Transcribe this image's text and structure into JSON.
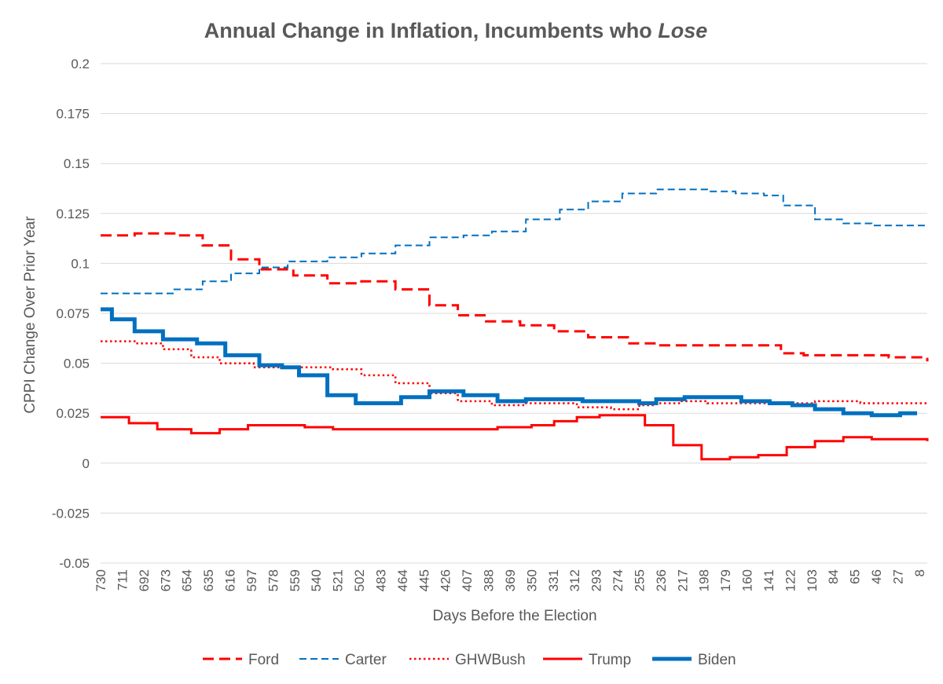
{
  "chart_data": {
    "type": "line",
    "title": "Annual Change in Inflation, Incumbents who ",
    "title_emphasis": "Lose",
    "xlabel": "Days Before the Election",
    "ylabel": "CPPI Change Over Prior Year",
    "ylim": [
      -0.05,
      0.2
    ],
    "xlim": [
      730,
      1
    ],
    "x_reversed": true,
    "grid": true,
    "legend_position": "bottom",
    "y_ticks": [
      "-0.05",
      "-0.025",
      "0",
      "0.025",
      "0.05",
      "0.075",
      "0.1",
      "0.125",
      "0.15",
      "0.175",
      "0.2"
    ],
    "x_ticks": [
      "730",
      "711",
      "692",
      "673",
      "654",
      "635",
      "616",
      "597",
      "578",
      "559",
      "540",
      "521",
      "502",
      "483",
      "464",
      "445",
      "426",
      "407",
      "388",
      "369",
      "350",
      "331",
      "312",
      "293",
      "274",
      "255",
      "236",
      "217",
      "198",
      "179",
      "160",
      "141",
      "122",
      "103",
      "84",
      "65",
      "46",
      "27",
      "8"
    ],
    "series": [
      {
        "name": "Ford",
        "color": "#FF0000",
        "style": "dash",
        "width": 3,
        "points": [
          [
            730,
            0.114
          ],
          [
            700,
            0.115
          ],
          [
            665,
            0.114
          ],
          [
            640,
            0.109
          ],
          [
            615,
            0.102
          ],
          [
            590,
            0.097
          ],
          [
            570,
            0.097
          ],
          [
            560,
            0.094
          ],
          [
            530,
            0.09
          ],
          [
            500,
            0.091
          ],
          [
            470,
            0.087
          ],
          [
            440,
            0.079
          ],
          [
            415,
            0.074
          ],
          [
            390,
            0.071
          ],
          [
            360,
            0.069
          ],
          [
            330,
            0.066
          ],
          [
            300,
            0.063
          ],
          [
            265,
            0.06
          ],
          [
            240,
            0.059
          ],
          [
            220,
            0.059
          ],
          [
            180,
            0.059
          ],
          [
            150,
            0.059
          ],
          [
            130,
            0.055
          ],
          [
            110,
            0.054
          ],
          [
            90,
            0.054
          ],
          [
            60,
            0.054
          ],
          [
            35,
            0.053
          ],
          [
            10,
            0.053
          ],
          [
            1,
            0.051
          ]
        ]
      },
      {
        "name": "Carter",
        "color": "#0070C0",
        "style": "dash",
        "width": 2,
        "points": [
          [
            730,
            0.085
          ],
          [
            700,
            0.085
          ],
          [
            665,
            0.087
          ],
          [
            640,
            0.091
          ],
          [
            615,
            0.095
          ],
          [
            590,
            0.098
          ],
          [
            565,
            0.101
          ],
          [
            540,
            0.101
          ],
          [
            530,
            0.103
          ],
          [
            500,
            0.105
          ],
          [
            470,
            0.109
          ],
          [
            440,
            0.113
          ],
          [
            410,
            0.114
          ],
          [
            385,
            0.116
          ],
          [
            355,
            0.122
          ],
          [
            325,
            0.127
          ],
          [
            300,
            0.131
          ],
          [
            270,
            0.135
          ],
          [
            240,
            0.137
          ],
          [
            215,
            0.137
          ],
          [
            195,
            0.136
          ],
          [
            170,
            0.135
          ],
          [
            145,
            0.134
          ],
          [
            128,
            0.129
          ],
          [
            100,
            0.122
          ],
          [
            75,
            0.12
          ],
          [
            50,
            0.119
          ],
          [
            1,
            0.119
          ]
        ]
      },
      {
        "name": "GHWBush",
        "color": "#FF0000",
        "style": "dot",
        "width": 2.5,
        "points": [
          [
            730,
            0.061
          ],
          [
            700,
            0.06
          ],
          [
            675,
            0.057
          ],
          [
            650,
            0.053
          ],
          [
            625,
            0.05
          ],
          [
            595,
            0.048
          ],
          [
            570,
            0.048
          ],
          [
            545,
            0.048
          ],
          [
            525,
            0.047
          ],
          [
            500,
            0.044
          ],
          [
            470,
            0.04
          ],
          [
            440,
            0.035
          ],
          [
            415,
            0.031
          ],
          [
            385,
            0.029
          ],
          [
            355,
            0.03
          ],
          [
            330,
            0.03
          ],
          [
            310,
            0.028
          ],
          [
            280,
            0.027
          ],
          [
            255,
            0.029
          ],
          [
            240,
            0.03
          ],
          [
            220,
            0.031
          ],
          [
            195,
            0.03
          ],
          [
            170,
            0.03
          ],
          [
            145,
            0.03
          ],
          [
            125,
            0.03
          ],
          [
            100,
            0.031
          ],
          [
            80,
            0.031
          ],
          [
            60,
            0.03
          ],
          [
            1,
            0.03
          ]
        ]
      },
      {
        "name": "Trump",
        "color": "#FF0000",
        "style": "solid",
        "width": 3,
        "points": [
          [
            730,
            0.023
          ],
          [
            705,
            0.02
          ],
          [
            680,
            0.017
          ],
          [
            650,
            0.015
          ],
          [
            625,
            0.017
          ],
          [
            600,
            0.019
          ],
          [
            575,
            0.019
          ],
          [
            550,
            0.018
          ],
          [
            525,
            0.017
          ],
          [
            500,
            0.017
          ],
          [
            475,
            0.017
          ],
          [
            450,
            0.017
          ],
          [
            425,
            0.017
          ],
          [
            405,
            0.017
          ],
          [
            380,
            0.018
          ],
          [
            350,
            0.019
          ],
          [
            330,
            0.021
          ],
          [
            310,
            0.023
          ],
          [
            290,
            0.024
          ],
          [
            270,
            0.024
          ],
          [
            250,
            0.019
          ],
          [
            225,
            0.009
          ],
          [
            200,
            0.002
          ],
          [
            175,
            0.003
          ],
          [
            150,
            0.004
          ],
          [
            125,
            0.008
          ],
          [
            100,
            0.011
          ],
          [
            75,
            0.013
          ],
          [
            50,
            0.012
          ],
          [
            25,
            0.012
          ],
          [
            1,
            0.011
          ]
        ]
      },
      {
        "name": "Biden",
        "color": "#0070C0",
        "style": "solid",
        "width": 5,
        "points": [
          [
            730,
            0.077
          ],
          [
            720,
            0.072
          ],
          [
            700,
            0.066
          ],
          [
            675,
            0.062
          ],
          [
            645,
            0.06
          ],
          [
            620,
            0.054
          ],
          [
            590,
            0.049
          ],
          [
            570,
            0.048
          ],
          [
            555,
            0.044
          ],
          [
            530,
            0.034
          ],
          [
            505,
            0.03
          ],
          [
            485,
            0.03
          ],
          [
            465,
            0.033
          ],
          [
            440,
            0.036
          ],
          [
            410,
            0.034
          ],
          [
            380,
            0.031
          ],
          [
            355,
            0.032
          ],
          [
            330,
            0.032
          ],
          [
            305,
            0.031
          ],
          [
            280,
            0.031
          ],
          [
            255,
            0.03
          ],
          [
            240,
            0.032
          ],
          [
            215,
            0.033
          ],
          [
            190,
            0.033
          ],
          [
            165,
            0.031
          ],
          [
            140,
            0.03
          ],
          [
            120,
            0.029
          ],
          [
            100,
            0.027
          ],
          [
            75,
            0.025
          ],
          [
            50,
            0.024
          ],
          [
            25,
            0.025
          ],
          [
            10,
            0.025
          ]
        ]
      }
    ]
  }
}
